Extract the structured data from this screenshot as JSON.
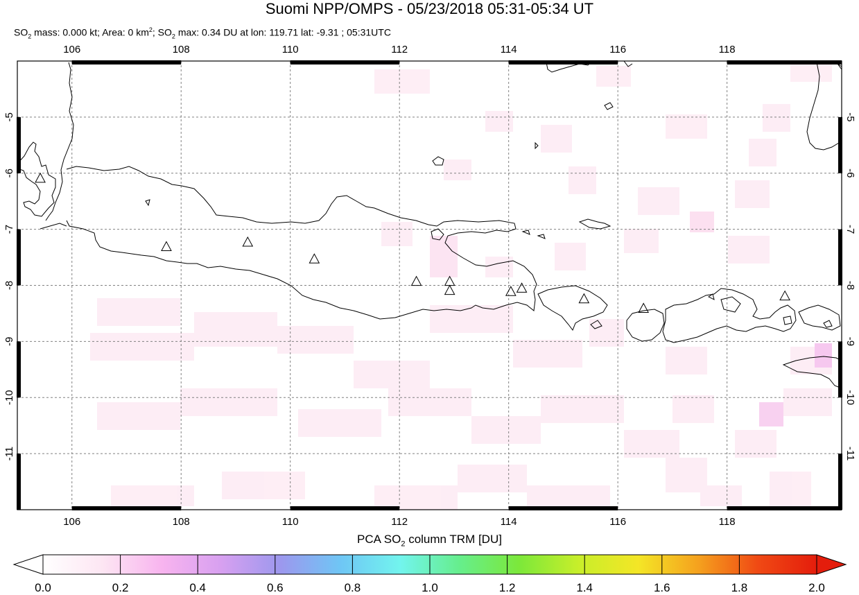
{
  "title": "Suomi NPP/OMPS - 05/23/2018 05:31-05:34 UT",
  "subtitle": {
    "mass_label": "SO",
    "mass_rest": " mass: 0.000 kt; Area: 0 km",
    "area_rest": "; SO",
    "max_rest": " max: 0.34 DU at lon: 119.71 lat: -9.31 ; 05:31UTC",
    "sub2": "2",
    "sup2": "2"
  },
  "map": {
    "lon_ticks": [
      "106",
      "108",
      "110",
      "112",
      "114",
      "116",
      "118"
    ],
    "lat_ticks": [
      "-5",
      "-6",
      "-7",
      "-8",
      "-9",
      "-10",
      "-11"
    ],
    "lon_range": [
      105.0,
      120.1
    ],
    "lat_range": [
      -12.0,
      -4.0
    ],
    "volcano_icon": "triangle-outline-icon",
    "volcanoes": [
      {
        "lon": 105.42,
        "lat": -6.1
      },
      {
        "lon": 107.73,
        "lat": -7.32
      },
      {
        "lon": 109.22,
        "lat": -7.24
      },
      {
        "lon": 110.44,
        "lat": -7.54
      },
      {
        "lon": 112.31,
        "lat": -7.94
      },
      {
        "lon": 112.92,
        "lat": -7.94
      },
      {
        "lon": 112.92,
        "lat": -8.1
      },
      {
        "lon": 114.04,
        "lat": -8.12
      },
      {
        "lon": 114.24,
        "lat": -8.06
      },
      {
        "lon": 115.38,
        "lat": -8.25
      },
      {
        "lon": 116.47,
        "lat": -8.42
      },
      {
        "lon": 119.06,
        "lat": -8.2
      }
    ]
  },
  "colorbar": {
    "title_pre": "PCA SO",
    "title_sub": "2",
    "title_post": " column TRM [DU]",
    "ticks": [
      "0.0",
      "0.2",
      "0.4",
      "0.6",
      "0.8",
      "1.0",
      "1.2",
      "1.4",
      "1.6",
      "1.8",
      "2.0"
    ],
    "range": [
      0.0,
      2.0
    ],
    "colors": [
      "#ffffff",
      "#fde6f3",
      "#f8b4ef",
      "#d7a0f0",
      "#9c98ee",
      "#6fc6f5",
      "#72f4ee",
      "#66ee8c",
      "#7ce83a",
      "#c8ee2a",
      "#f4e626",
      "#f5a21e",
      "#f04a14",
      "#e41d0c"
    ]
  }
}
